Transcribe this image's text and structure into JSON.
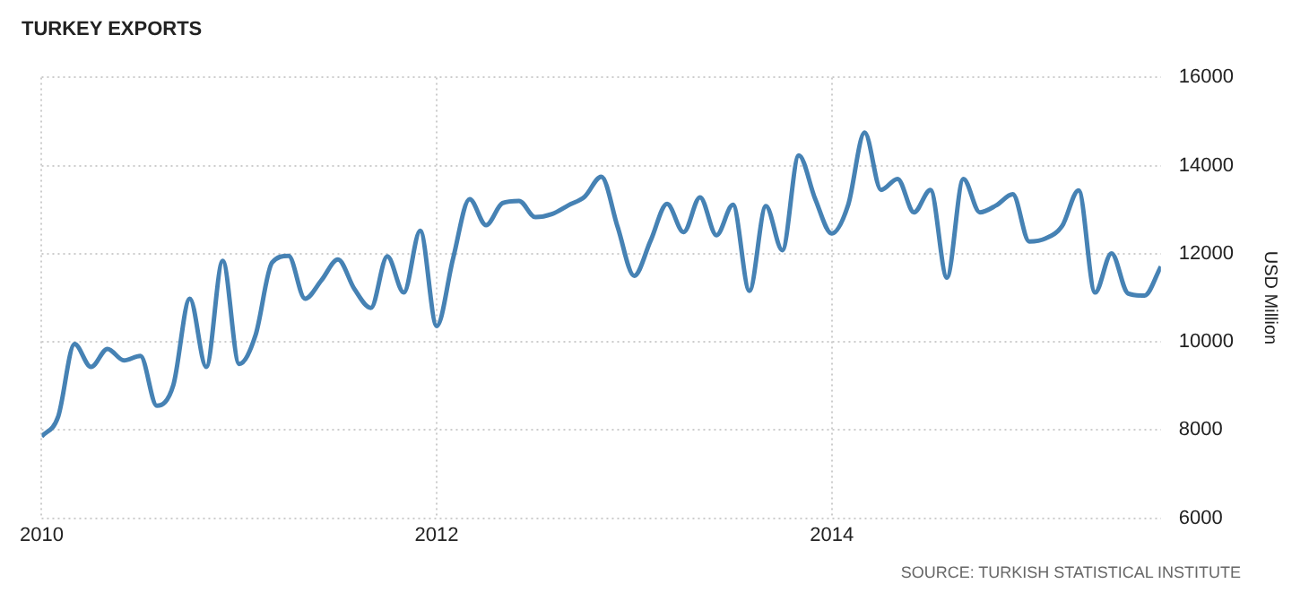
{
  "chart_data": {
    "type": "line",
    "title": "TURKEY EXPORTS",
    "ylabel": "USD Million",
    "annotations": [
      "SOURCE: TURKISH STATISTICAL INSTITUTE"
    ],
    "x": [
      "2010-01",
      "2010-02",
      "2010-03",
      "2010-04",
      "2010-05",
      "2010-06",
      "2010-07",
      "2010-08",
      "2010-09",
      "2010-10",
      "2010-11",
      "2010-12",
      "2011-01",
      "2011-02",
      "2011-03",
      "2011-04",
      "2011-05",
      "2011-06",
      "2011-07",
      "2011-08",
      "2011-09",
      "2011-10",
      "2011-11",
      "2011-12",
      "2012-01",
      "2012-02",
      "2012-03",
      "2012-04",
      "2012-05",
      "2012-06",
      "2012-07",
      "2012-08",
      "2012-09",
      "2012-10",
      "2012-11",
      "2012-12",
      "2013-01",
      "2013-02",
      "2013-03",
      "2013-04",
      "2013-05",
      "2013-06",
      "2013-07",
      "2013-08",
      "2013-09",
      "2013-10",
      "2013-11",
      "2013-12",
      "2014-01",
      "2014-02",
      "2014-03",
      "2014-04",
      "2014-05",
      "2014-06",
      "2014-07",
      "2014-08",
      "2014-09",
      "2014-10",
      "2014-11",
      "2014-12",
      "2015-01",
      "2015-02",
      "2015-03",
      "2015-04",
      "2015-05",
      "2015-06",
      "2015-07",
      "2015-08",
      "2015-09"
    ],
    "series": [
      {
        "color": "#4682b4",
        "values": [
          7850,
          8300,
          9950,
          9430,
          9840,
          9580,
          9680,
          8550,
          9020,
          10980,
          9430,
          11840,
          9500,
          10160,
          11800,
          11950,
          10980,
          11400,
          11870,
          11200,
          10770,
          11940,
          11120,
          12520,
          10360,
          11900,
          13240,
          12650,
          13150,
          13200,
          12830,
          12900,
          13100,
          13300,
          13750,
          12600,
          11500,
          12300,
          13130,
          12490,
          13280,
          12420,
          13110,
          11160,
          13080,
          12080,
          14230,
          13240,
          12460,
          13110,
          14750,
          13450,
          13700,
          12940,
          13450,
          11460,
          13700,
          12940,
          13100,
          13350,
          12280,
          12350,
          12630,
          13440,
          11120,
          12010,
          11100,
          11050,
          11710
        ]
      }
    ],
    "xlim": [
      "2010-01",
      "2015-09"
    ],
    "xticks": [
      "2010",
      "2012",
      "2014"
    ],
    "ylim": [
      6000,
      16000
    ],
    "yticks": [
      6000,
      8000,
      10000,
      12000,
      14000,
      16000
    ],
    "grid": true,
    "legend": false,
    "marker": "none",
    "line_style": "solid"
  }
}
